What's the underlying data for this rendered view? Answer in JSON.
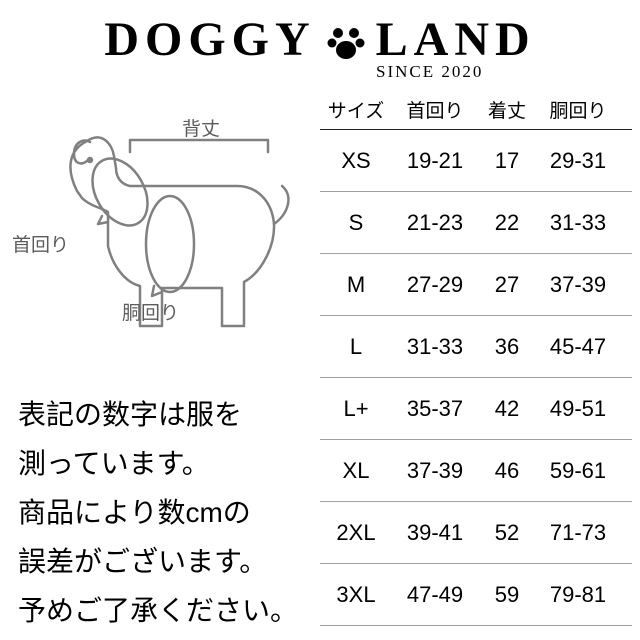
{
  "logo": {
    "brand_left": "DOGGY",
    "brand_right": "LAND",
    "since": "SINCE 2020"
  },
  "diagram": {
    "labels": {
      "back": "背丈",
      "neck": "首回り",
      "chest": "胴回り"
    }
  },
  "note": {
    "line1": "表記の数字は服を",
    "line2": "測っています。",
    "line3": "商品により数cmの",
    "line4": "誤差がございます。",
    "line5": "予めご了承ください。"
  },
  "table": {
    "headers": {
      "size": "サイズ",
      "neck": "首回り",
      "length": "着丈",
      "chest": "胴回り"
    },
    "rows": [
      {
        "size": "XS",
        "neck": "19-21",
        "length": "17",
        "chest": "29-31"
      },
      {
        "size": "S",
        "neck": "21-23",
        "length": "22",
        "chest": "31-33"
      },
      {
        "size": "M",
        "neck": "27-29",
        "length": "27",
        "chest": "37-39"
      },
      {
        "size": "L",
        "neck": "31-33",
        "length": "36",
        "chest": "45-47"
      },
      {
        "size": "L+",
        "neck": "35-37",
        "length": "42",
        "chest": "49-51"
      },
      {
        "size": "XL",
        "neck": "37-39",
        "length": "46",
        "chest": "59-61"
      },
      {
        "size": "2XL",
        "neck": "39-41",
        "length": "52",
        "chest": "71-73"
      },
      {
        "size": "3XL",
        "neck": "47-49",
        "length": "59",
        "chest": "79-81"
      }
    ]
  },
  "styling": {
    "bg": "#ffffff",
    "text_color": "#000000",
    "diagram_stroke": "#808080",
    "row_border": "#a0a0a0",
    "header_border": "#222222"
  }
}
